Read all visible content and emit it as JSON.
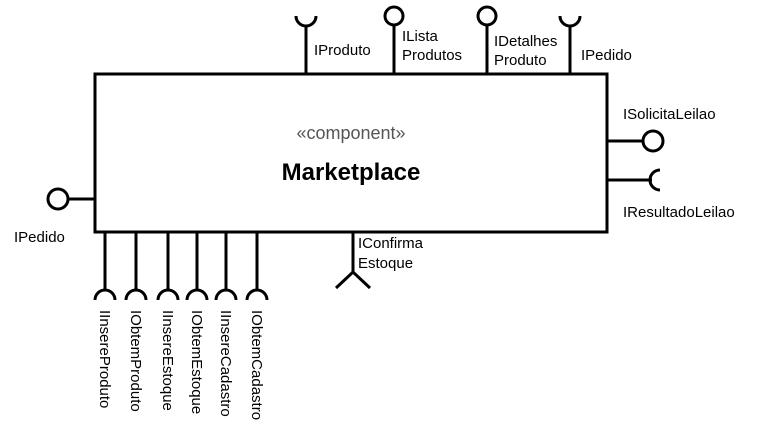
{
  "component": {
    "stereotype": "«component»",
    "name": "Marketplace"
  },
  "top": [
    {
      "kind": "required",
      "lines": [
        "IProduto"
      ]
    },
    {
      "kind": "provided",
      "lines": [
        "ILista",
        "Produtos"
      ]
    },
    {
      "kind": "provided",
      "lines": [
        "IDetalhes",
        "Produto"
      ]
    },
    {
      "kind": "required",
      "lines": [
        "IPedido"
      ]
    }
  ],
  "right": [
    {
      "kind": "provided",
      "lines": [
        "ISolicitaLeilao"
      ]
    },
    {
      "kind": "required",
      "lines": [
        "IResultadoLeilao"
      ]
    }
  ],
  "left": [
    {
      "kind": "provided",
      "lines": [
        "IPedido"
      ]
    }
  ],
  "bottom_middle": {
    "kind": "required",
    "lines": [
      "IConfirma",
      "Estoque"
    ]
  },
  "bottom": [
    {
      "kind": "required",
      "lines": [
        "IInsereProduto"
      ]
    },
    {
      "kind": "required",
      "lines": [
        "IObtemProduto"
      ]
    },
    {
      "kind": "required",
      "lines": [
        "IInsereEstoque"
      ]
    },
    {
      "kind": "required",
      "lines": [
        "IObtemEstoque"
      ]
    },
    {
      "kind": "required",
      "lines": [
        "IInsereCadastro"
      ]
    },
    {
      "kind": "required",
      "lines": [
        "IObtemCadastro"
      ]
    }
  ]
}
